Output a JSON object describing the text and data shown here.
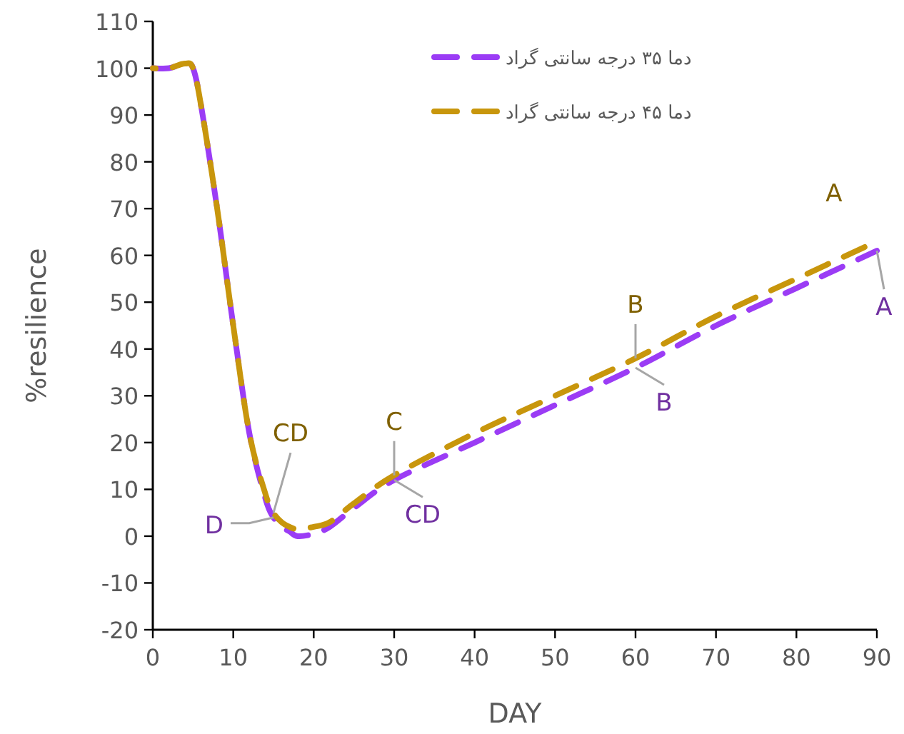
{
  "chart_data": {
    "type": "line",
    "xlabel": "DAY",
    "ylabel": "%resilience",
    "xlim": [
      0,
      90
    ],
    "xticks": [
      0,
      10,
      20,
      30,
      40,
      50,
      60,
      70,
      80,
      90
    ],
    "ylim": [
      -20,
      110
    ],
    "yticks": [
      -20,
      -10,
      0,
      10,
      20,
      30,
      40,
      50,
      60,
      70,
      80,
      90,
      100,
      110
    ],
    "grid": false,
    "legend": "top right",
    "marker": "none",
    "series": [
      {
        "name": "دما ۳۵ درجه سانتی گراد",
        "color": "#9b3cf5",
        "line_style": "dashed",
        "x": [
          0,
          2,
          4,
          5,
          6,
          8,
          10,
          12,
          14,
          15,
          16,
          17,
          18,
          20,
          22,
          25,
          30,
          40,
          50,
          60,
          70,
          80,
          90
        ],
        "values": [
          100,
          100,
          101,
          100,
          92,
          70,
          45,
          22,
          8,
          4,
          2,
          1,
          0,
          0.5,
          2,
          6,
          12,
          20,
          28,
          36,
          45,
          53,
          61
        ]
      },
      {
        "name": "دما ۴۵ درجه سانتی گراد",
        "color": "#c8960c",
        "line_style": "dashed",
        "x": [
          0,
          2,
          4,
          5,
          6,
          8,
          10,
          12,
          14,
          15,
          16,
          17,
          18,
          20,
          22,
          25,
          30,
          40,
          50,
          60,
          70,
          80,
          90
        ],
        "values": [
          100,
          100,
          101,
          100,
          92,
          70,
          45,
          22,
          9,
          5,
          3,
          2,
          1.5,
          2,
          3,
          7,
          13,
          22,
          30,
          38,
          47,
          55,
          63
        ]
      }
    ],
    "annotations": [
      {
        "text": "A",
        "x": 90,
        "y": 63
      },
      {
        "text": "B",
        "x": 60,
        "y": 38
      },
      {
        "text": "C",
        "x": 30,
        "y": 13
      },
      {
        "text": "CD",
        "x": 15,
        "y": 5
      },
      {
        "text": "A",
        "x": 90,
        "y": 61
      },
      {
        "text": "B",
        "x": 60,
        "y": 36
      },
      {
        "text": "CD",
        "x": 30,
        "y": 12
      },
      {
        "text": "D",
        "x": 15,
        "y": 4
      }
    ]
  }
}
